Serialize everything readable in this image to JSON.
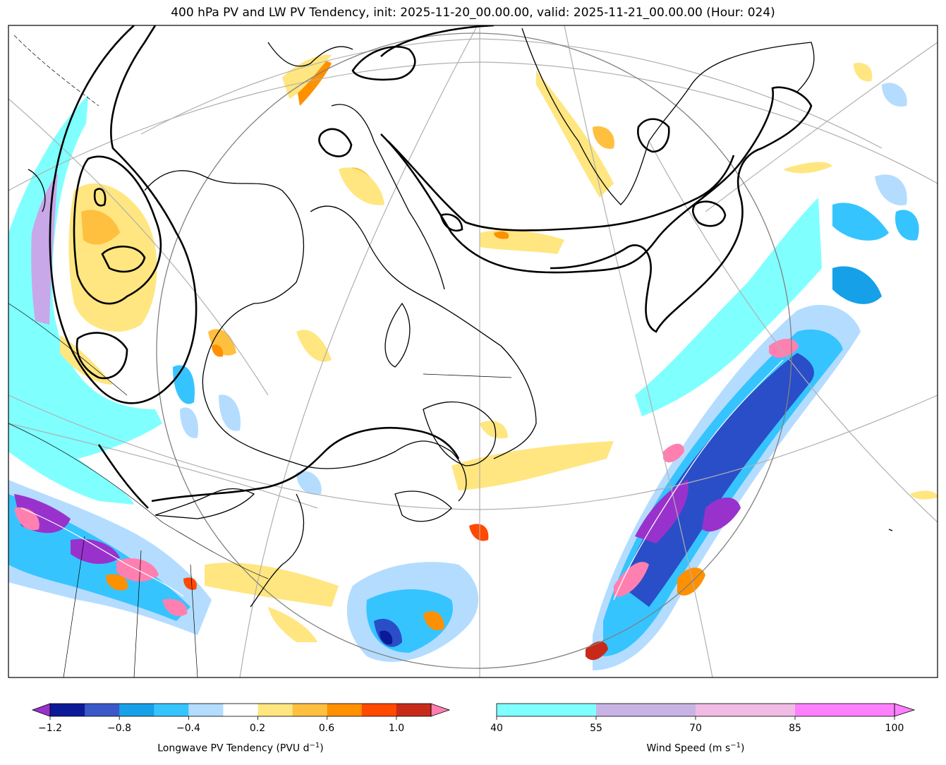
{
  "title": "400 hPa PV and LW PV Tendency, init: 2025-11-20_00.00.00, valid: 2025-11-21_00.00.00 (Hour: 024)",
  "map_layers": {
    "fill_colors": {
      "light_yellow": "#ffe680",
      "yellow": "#ffc040",
      "orange": "#ff9000",
      "red_orange": "#ff4a00",
      "dark_red": "#c82a1a",
      "light_blue": "#b4dcff",
      "blue": "#36c4ff",
      "mid_blue": "#16a0e8",
      "dark_blue": "#2a4ec8",
      "navy": "#0c1a98",
      "purple": "#9932cc",
      "pink": "#ff80b0",
      "cyan": "#80ffff",
      "lavender": "#c8a8e8"
    }
  },
  "colorbar_left": {
    "label": "Longwave PV Tendency (PVU d",
    "label_exp": "−1",
    "label_end": ")",
    "ticks": [
      "−1.2",
      "−0.8",
      "−0.4",
      "0.2",
      "0.6",
      "1.0"
    ],
    "colors": [
      "#0c1a98",
      "#3a58c8",
      "#16a0e8",
      "#36c4ff",
      "#b4dcff",
      "#ffffff",
      "#ffe680",
      "#ffc040",
      "#ff9000",
      "#ff4a00",
      "#c82a1a"
    ],
    "under_color": "#9932cc",
    "over_color": "#ff80b0"
  },
  "colorbar_right": {
    "label": "Wind Speed (m s",
    "label_exp": "−1",
    "label_end": ")",
    "ticks": [
      "40",
      "55",
      "70",
      "85",
      "100"
    ],
    "colors": [
      "#80ffff",
      "#c8b4e4",
      "#f0bce4",
      "#ff80ff"
    ],
    "over_color": "#ff80ff"
  }
}
